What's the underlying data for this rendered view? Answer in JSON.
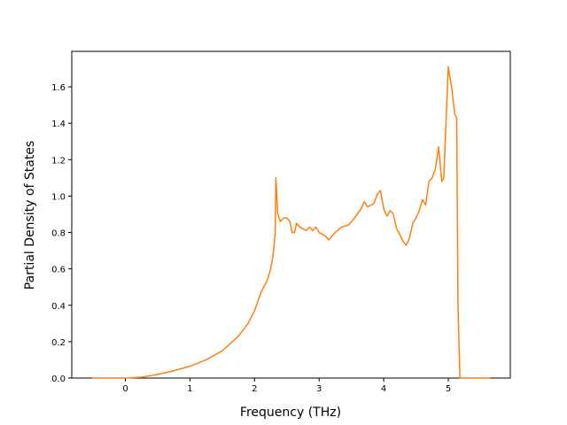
{
  "chart_data": {
    "type": "line",
    "x_label": "Frequency (THz)",
    "y_label": "Partial Density of States",
    "color": "#ff7f0e",
    "x": [
      -0.52,
      0,
      0.25,
      0.5,
      0.75,
      1.0,
      1.25,
      1.5,
      1.75,
      1.9,
      2.0,
      2.05,
      2.1,
      2.2,
      2.25,
      2.28,
      2.3,
      2.32,
      2.33,
      2.36,
      2.4,
      2.45,
      2.5,
      2.55,
      2.58,
      2.62,
      2.65,
      2.7,
      2.75,
      2.8,
      2.85,
      2.9,
      2.95,
      3.0,
      3.1,
      3.15,
      3.25,
      3.35,
      3.45,
      3.55,
      3.65,
      3.7,
      3.75,
      3.85,
      3.9,
      3.95,
      4.0,
      4.05,
      4.1,
      4.15,
      4.2,
      4.25,
      4.3,
      4.35,
      4.4,
      4.45,
      4.5,
      4.55,
      4.6,
      4.65,
      4.7,
      4.75,
      4.8,
      4.85,
      4.9,
      4.93,
      4.97,
      5.0,
      5.05,
      5.1,
      5.13,
      5.15,
      5.18,
      5.65
    ],
    "values": [
      0,
      0,
      0.005,
      0.02,
      0.04,
      0.065,
      0.1,
      0.15,
      0.23,
      0.3,
      0.37,
      0.42,
      0.47,
      0.54,
      0.6,
      0.66,
      0.72,
      0.8,
      1.1,
      0.9,
      0.86,
      0.88,
      0.88,
      0.86,
      0.8,
      0.8,
      0.85,
      0.83,
      0.82,
      0.81,
      0.83,
      0.81,
      0.83,
      0.8,
      0.78,
      0.76,
      0.8,
      0.83,
      0.84,
      0.88,
      0.93,
      0.97,
      0.94,
      0.96,
      1.01,
      1.03,
      0.93,
      0.89,
      0.92,
      0.9,
      0.82,
      0.79,
      0.75,
      0.73,
      0.77,
      0.85,
      0.88,
      0.92,
      0.98,
      0.95,
      1.08,
      1.1,
      1.15,
      1.27,
      1.08,
      1.1,
      1.45,
      1.71,
      1.6,
      1.45,
      1.43,
      0.4,
      0,
      0
    ],
    "xlim": [
      -0.83,
      5.96
    ],
    "xticks": [
      0,
      1,
      2,
      3,
      4,
      5
    ],
    "ylim": [
      0,
      1.795
    ],
    "yticks": [
      {
        "value": 0,
        "label": "0.0"
      },
      0.2,
      0.4,
      0.6,
      0.8,
      {
        "value": 1,
        "label": "1.0"
      },
      1.2,
      1.4,
      1.6
    ]
  }
}
